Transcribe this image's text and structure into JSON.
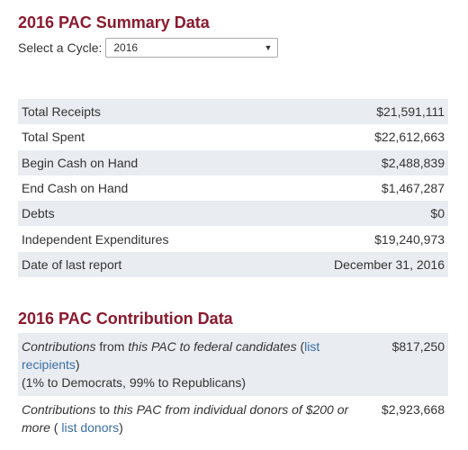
{
  "summary": {
    "title": "2016 PAC Summary Data",
    "cycle_label": "Select a Cycle:",
    "cycle_value": "2016",
    "rows": [
      {
        "label": "Total Receipts",
        "value": "$21,591,111"
      },
      {
        "label": "Total Spent",
        "value": "$22,612,663"
      },
      {
        "label": "Begin Cash on Hand",
        "value": "$2,488,839"
      },
      {
        "label": "End Cash on Hand",
        "value": "$1,467,287"
      },
      {
        "label": "Debts",
        "value": "$0"
      },
      {
        "label": "Independent Expenditures",
        "value": "$19,240,973"
      },
      {
        "label": "Date of last report",
        "value": "December 31, 2016"
      }
    ]
  },
  "contribution": {
    "title": "2016 PAC Contribution Data",
    "row1": {
      "em1": "Contributions",
      "text1": " from ",
      "em2": "this PAC to federal candidates",
      "text2": " (",
      "link": "list recipients",
      "text3": ")",
      "note": "(1% to Democrats, 99% to Republicans)",
      "value": "$817,250"
    },
    "row2": {
      "em1": "Contributions",
      "text1": " to ",
      "em2": "this PAC from individual donors of $200 or more",
      "text2": " ( ",
      "link": "list donors",
      "text3": ")",
      "value": "$2,923,668"
    }
  }
}
